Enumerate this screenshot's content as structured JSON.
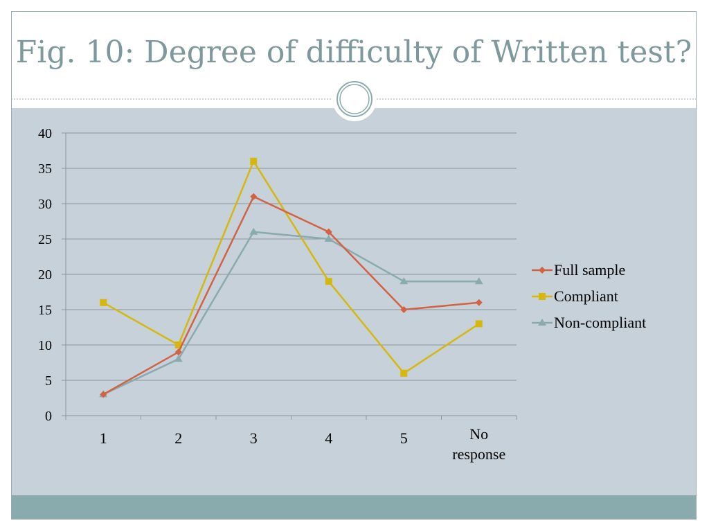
{
  "slide": {
    "title": "Fig. 10: Degree of difficulty of Written test?"
  },
  "colors": {
    "title": "#7d999c",
    "background": "#c6d1d9",
    "footer": "#8aabad",
    "full_sample": "#d26243",
    "compliant": "#d6b70e",
    "non_compliant": "#8aabad"
  },
  "chart_data": {
    "type": "line",
    "categories": [
      "1",
      "2",
      "3",
      "4",
      "5",
      "No response"
    ],
    "series": [
      {
        "name": "Full sample",
        "values": [
          3,
          9,
          31,
          26,
          15,
          16
        ],
        "color": "#d26243",
        "marker": "diamond"
      },
      {
        "name": "Compliant",
        "values": [
          16,
          10,
          36,
          19,
          6,
          13
        ],
        "color": "#d6b70e",
        "marker": "square"
      },
      {
        "name": "Non-compliant",
        "values": [
          3,
          8,
          26,
          25,
          19,
          19
        ],
        "color": "#8aabad",
        "marker": "triangle"
      }
    ],
    "ylim": [
      0,
      40
    ],
    "yticks": [
      "0",
      "5",
      "10",
      "15",
      "20",
      "25",
      "30",
      "35",
      "40"
    ],
    "grid": true,
    "legend": "right"
  }
}
